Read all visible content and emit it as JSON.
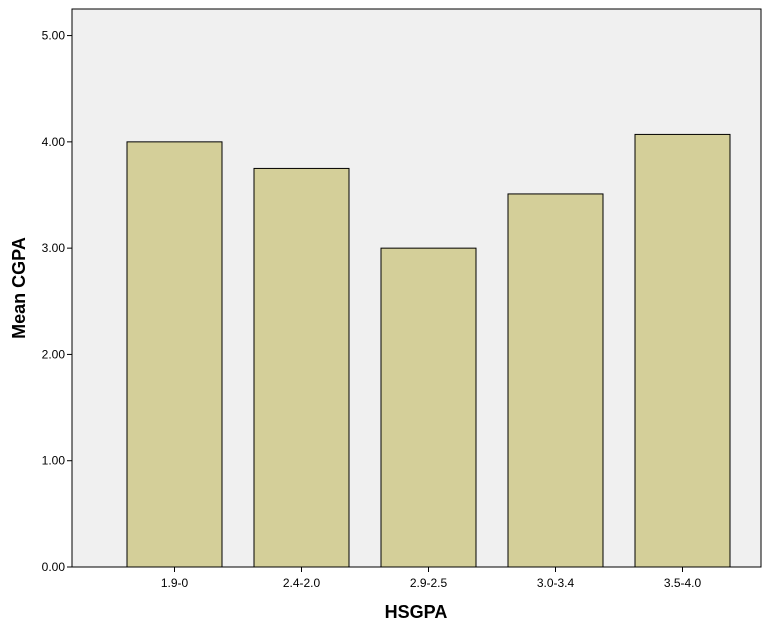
{
  "chart_data": {
    "type": "bar",
    "title": "",
    "xlabel": "HSGPA",
    "ylabel": "Mean CGPA",
    "categories": [
      "1.9-0",
      "2.4-2.0",
      "2.9-2.5",
      "3.0-3.4",
      "3.5-4.0"
    ],
    "values": [
      4.0,
      3.75,
      3.0,
      3.51,
      4.07
    ],
    "ylim": [
      0,
      5.25
    ],
    "yticks": [
      "0.00",
      "1.00",
      "2.00",
      "3.00",
      "4.00",
      "5.00"
    ],
    "grid": false,
    "legend": "none",
    "colors": {
      "plot_background": "#f0f0f0",
      "bar_fill": "#d4cf99",
      "bar_stroke": "#000000"
    }
  }
}
